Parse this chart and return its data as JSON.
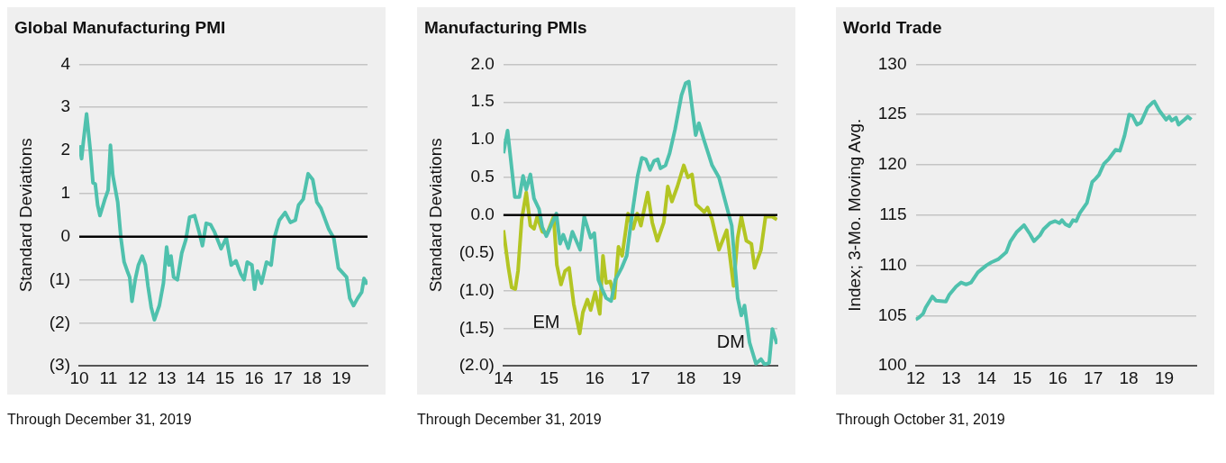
{
  "chart_data": [
    {
      "type": "line",
      "title": "Global Manufacturing PMI",
      "ylabel": "Standard Deviations",
      "annotations": [
        "Through December 31, 2019"
      ],
      "x": [
        2010.0,
        2010.08,
        2010.14,
        2010.25,
        2010.38,
        2010.47,
        2010.55,
        2010.63,
        2010.71,
        2010.88,
        2010.99,
        2011.07,
        2011.15,
        2011.32,
        2011.43,
        2011.54,
        2011.65,
        2011.73,
        2011.81,
        2011.92,
        2012.03,
        2012.16,
        2012.27,
        2012.36,
        2012.47,
        2012.58,
        2012.75,
        2012.89,
        2013.0,
        2013.08,
        2013.15,
        2013.24,
        2013.37,
        2013.52,
        2013.66,
        2013.79,
        2013.96,
        2014.12,
        2014.23,
        2014.36,
        2014.51,
        2014.65,
        2014.87,
        2015.05,
        2015.22,
        2015.38,
        2015.55,
        2015.66,
        2015.77,
        2015.93,
        2016.02,
        2016.12,
        2016.26,
        2016.43,
        2016.59,
        2016.7,
        2016.87,
        2017.07,
        2017.25,
        2017.42,
        2017.53,
        2017.69,
        2017.86,
        2018.02,
        2018.16,
        2018.3,
        2018.57,
        2018.74,
        2018.9,
        2019.18,
        2019.29,
        2019.42,
        2019.56,
        2019.7,
        2019.78,
        2019.89
      ],
      "series": [
        {
          "color": "#4fc1ad",
          "values": [
            2.12,
            1.81,
            2.2,
            2.85,
            1.99,
            1.25,
            1.22,
            0.73,
            0.49,
            0.87,
            1.08,
            2.12,
            1.43,
            0.8,
            -0.03,
            -0.59,
            -0.8,
            -0.94,
            -1.5,
            -1.0,
            -0.66,
            -0.45,
            -0.66,
            -1.15,
            -1.64,
            -1.93,
            -1.6,
            -1.08,
            -0.24,
            -0.66,
            -0.45,
            -0.94,
            -1.0,
            -0.38,
            -0.07,
            0.45,
            0.49,
            0.1,
            -0.21,
            0.31,
            0.28,
            0.1,
            -0.28,
            -0.03,
            -0.66,
            -0.56,
            -0.87,
            -1.0,
            -0.59,
            -0.66,
            -1.22,
            -0.8,
            -1.08,
            -0.59,
            -0.66,
            -0.03,
            0.38,
            0.56,
            0.33,
            0.38,
            0.73,
            0.87,
            1.46,
            1.32,
            0.8,
            0.66,
            0.17,
            -0.03,
            -0.73,
            -0.94,
            -1.43,
            -1.6,
            -1.43,
            -1.29,
            -0.97,
            -1.11
          ]
        }
      ],
      "xlim": [
        2010,
        2019.9
      ],
      "xticks": [
        {
          "value": 2010,
          "label": "10"
        },
        {
          "value": 2011,
          "label": "11"
        },
        {
          "value": 2012,
          "label": "12"
        },
        {
          "value": 2013,
          "label": "13"
        },
        {
          "value": 2014,
          "label": "14"
        },
        {
          "value": 2015,
          "label": "15"
        },
        {
          "value": 2016,
          "label": "16"
        },
        {
          "value": 2017,
          "label": "17"
        },
        {
          "value": 2018,
          "label": "18"
        },
        {
          "value": 2019,
          "label": "19"
        }
      ],
      "ylim": [
        -3,
        4
      ],
      "yticks": [
        {
          "value": -3,
          "label": "(3)"
        },
        {
          "value": -2,
          "label": "(2)"
        },
        {
          "value": -1,
          "label": "(1)"
        },
        0,
        1,
        2,
        3,
        4
      ],
      "ref_lines": [
        {
          "axis": "y",
          "value": 0,
          "color": "#000000"
        }
      ],
      "grid": "y"
    },
    {
      "type": "line",
      "title": "Manufacturing PMIs",
      "ylabel": "Standard Deviations",
      "annotations": [
        "Through December 31, 2019"
      ],
      "series": [
        {
          "name": "DM",
          "color": "#4fc1ad",
          "x": [
            2014.0,
            2014.09,
            2014.16,
            2014.25,
            2014.35,
            2014.43,
            2014.5,
            2014.59,
            2014.67,
            2014.78,
            2014.85,
            2014.94,
            2015.04,
            2015.16,
            2015.24,
            2015.31,
            2015.42,
            2015.51,
            2015.68,
            2015.77,
            2015.91,
            2015.99,
            2016.08,
            2016.16,
            2016.25,
            2016.36,
            2016.45,
            2016.59,
            2016.7,
            2016.82,
            2016.94,
            2017.03,
            2017.12,
            2017.21,
            2017.3,
            2017.38,
            2017.44,
            2017.55,
            2017.64,
            2017.76,
            2017.9,
            2017.99,
            2018.06,
            2018.21,
            2018.28,
            2018.4,
            2018.57,
            2018.72,
            2018.86,
            2019.0,
            2019.13,
            2019.21,
            2019.28,
            2019.39,
            2019.53,
            2019.64,
            2019.72,
            2019.82,
            2019.89,
            2019.99
          ],
          "values": [
            0.82,
            1.12,
            0.74,
            0.24,
            0.24,
            0.52,
            0.34,
            0.54,
            0.22,
            0.08,
            -0.16,
            -0.28,
            -0.14,
            0.02,
            -0.38,
            -0.26,
            -0.44,
            -0.22,
            -0.46,
            -0.02,
            -0.3,
            -0.24,
            -0.86,
            -0.98,
            -1.1,
            -1.14,
            -0.86,
            -0.7,
            -0.54,
            0.02,
            0.52,
            0.76,
            0.74,
            0.6,
            0.72,
            0.74,
            0.62,
            0.66,
            0.82,
            1.14,
            1.59,
            1.75,
            1.77,
            1.06,
            1.22,
            0.98,
            0.66,
            0.5,
            0.18,
            -0.14,
            -1.1,
            -1.33,
            -1.2,
            -1.69,
            -1.97,
            -1.91,
            -1.98,
            -1.96,
            -1.51,
            -1.71
          ]
        },
        {
          "name": "EM",
          "color": "#b3c523",
          "x": [
            2014.0,
            2014.11,
            2014.18,
            2014.26,
            2014.32,
            2014.4,
            2014.5,
            2014.59,
            2014.67,
            2014.74,
            2014.85,
            2014.96,
            2015.1,
            2015.17,
            2015.26,
            2015.35,
            2015.44,
            2015.54,
            2015.67,
            2015.74,
            2015.84,
            2015.91,
            2016.01,
            2016.11,
            2016.18,
            2016.25,
            2016.34,
            2016.43,
            2016.52,
            2016.6,
            2016.73,
            2016.84,
            2016.93,
            2017.01,
            2017.16,
            2017.26,
            2017.37,
            2017.51,
            2017.6,
            2017.69,
            2017.81,
            2017.95,
            2018.04,
            2018.13,
            2018.22,
            2018.4,
            2018.47,
            2018.57,
            2018.72,
            2018.89,
            2019.04,
            2019.13,
            2019.21,
            2019.32,
            2019.43,
            2019.5,
            2019.64,
            2019.74,
            2019.89,
            2019.99
          ],
          "values": [
            -0.2,
            -0.7,
            -0.96,
            -0.98,
            -0.74,
            -0.06,
            0.3,
            -0.14,
            -0.18,
            -0.02,
            -0.22,
            -0.24,
            -0.02,
            -0.66,
            -0.92,
            -0.74,
            -0.7,
            -1.18,
            -1.57,
            -1.29,
            -1.12,
            -1.26,
            -1.02,
            -1.31,
            -0.54,
            -0.9,
            -0.88,
            -1.1,
            -0.42,
            -0.54,
            0.02,
            -0.18,
            0.02,
            -0.14,
            0.3,
            -0.1,
            -0.34,
            -0.1,
            0.38,
            0.18,
            0.38,
            0.66,
            0.5,
            0.54,
            0.14,
            0.04,
            0.1,
            -0.06,
            -0.46,
            -0.2,
            -0.94,
            -0.3,
            -0.02,
            -0.34,
            -0.38,
            -0.7,
            -0.46,
            -0.02,
            -0.02,
            -0.06
          ]
        }
      ],
      "xlim": [
        2014,
        2020
      ],
      "xticks": [
        {
          "value": 2014,
          "label": "14"
        },
        {
          "value": 2015,
          "label": "15"
        },
        {
          "value": 2016,
          "label": "16"
        },
        {
          "value": 2017,
          "label": "17"
        },
        {
          "value": 2018,
          "label": "18"
        },
        {
          "value": 2019,
          "label": "19"
        }
      ],
      "ylim": [
        -2,
        2
      ],
      "yticks": [
        {
          "value": -2,
          "label": "(2.0)"
        },
        {
          "value": -1.5,
          "label": "(1.5)"
        },
        {
          "value": -1,
          "label": "(1.0)"
        },
        {
          "value": -0.5,
          "label": "(0.5)"
        },
        {
          "value": 0,
          "label": "0.0"
        },
        {
          "value": 0.5,
          "label": "0.5"
        },
        {
          "value": 1,
          "label": "1.0"
        },
        {
          "value": 1.5,
          "label": "1.5"
        },
        {
          "value": 2,
          "label": "2.0"
        }
      ],
      "ref_lines": [
        {
          "axis": "y",
          "value": 0,
          "color": "#000000"
        }
      ],
      "grid": "y"
    },
    {
      "type": "line",
      "title": "World Trade",
      "ylabel": "Index; 3-Mo. Moving Avg.",
      "annotations": [
        "Through October 31, 2019"
      ],
      "x": [
        2012.0,
        2012.09,
        2012.21,
        2012.28,
        2012.47,
        2012.57,
        2012.85,
        2012.95,
        2013.14,
        2013.28,
        2013.42,
        2013.56,
        2013.75,
        2013.99,
        2014.13,
        2014.32,
        2014.55,
        2014.67,
        2014.84,
        2015.05,
        2015.22,
        2015.33,
        2015.5,
        2015.6,
        2015.78,
        2015.93,
        2016.05,
        2016.12,
        2016.21,
        2016.33,
        2016.43,
        2016.52,
        2016.62,
        2016.82,
        2016.97,
        2017.06,
        2017.16,
        2017.3,
        2017.44,
        2017.63,
        2017.75,
        2017.88,
        2018.01,
        2018.1,
        2018.23,
        2018.34,
        2018.53,
        2018.67,
        2018.72,
        2018.86,
        2019.05,
        2019.14,
        2019.21,
        2019.33,
        2019.4,
        2019.57,
        2019.66,
        2019.76
      ],
      "series": [
        {
          "color": "#4fc1ad",
          "values": [
            104.6,
            104.8,
            105.2,
            105.8,
            106.9,
            106.5,
            106.4,
            107.1,
            107.9,
            108.3,
            108.1,
            108.3,
            109.3,
            110.0,
            110.3,
            110.6,
            111.3,
            112.4,
            113.3,
            114.0,
            113.1,
            112.4,
            113.0,
            113.6,
            114.2,
            114.4,
            114.2,
            114.5,
            114.1,
            113.9,
            114.5,
            114.4,
            115.2,
            116.2,
            118.3,
            118.6,
            119.0,
            120.1,
            120.6,
            121.5,
            121.4,
            122.9,
            125.0,
            124.9,
            124.0,
            124.2,
            125.7,
            126.2,
            126.3,
            125.4,
            124.5,
            124.8,
            124.4,
            124.7,
            124.0,
            124.5,
            124.8,
            124.5
          ]
        }
      ],
      "xlim": [
        2012,
        2019.9
      ],
      "xticks": [
        {
          "value": 2012,
          "label": "12"
        },
        {
          "value": 2013,
          "label": "13"
        },
        {
          "value": 2014,
          "label": "14"
        },
        {
          "value": 2015,
          "label": "15"
        },
        {
          "value": 2016,
          "label": "16"
        },
        {
          "value": 2017,
          "label": "17"
        },
        {
          "value": 2018,
          "label": "18"
        },
        {
          "value": 2019,
          "label": "19"
        }
      ],
      "ylim": [
        100,
        130
      ],
      "yticks": [
        100,
        105,
        110,
        115,
        120,
        125,
        130
      ],
      "grid": "y"
    }
  ]
}
